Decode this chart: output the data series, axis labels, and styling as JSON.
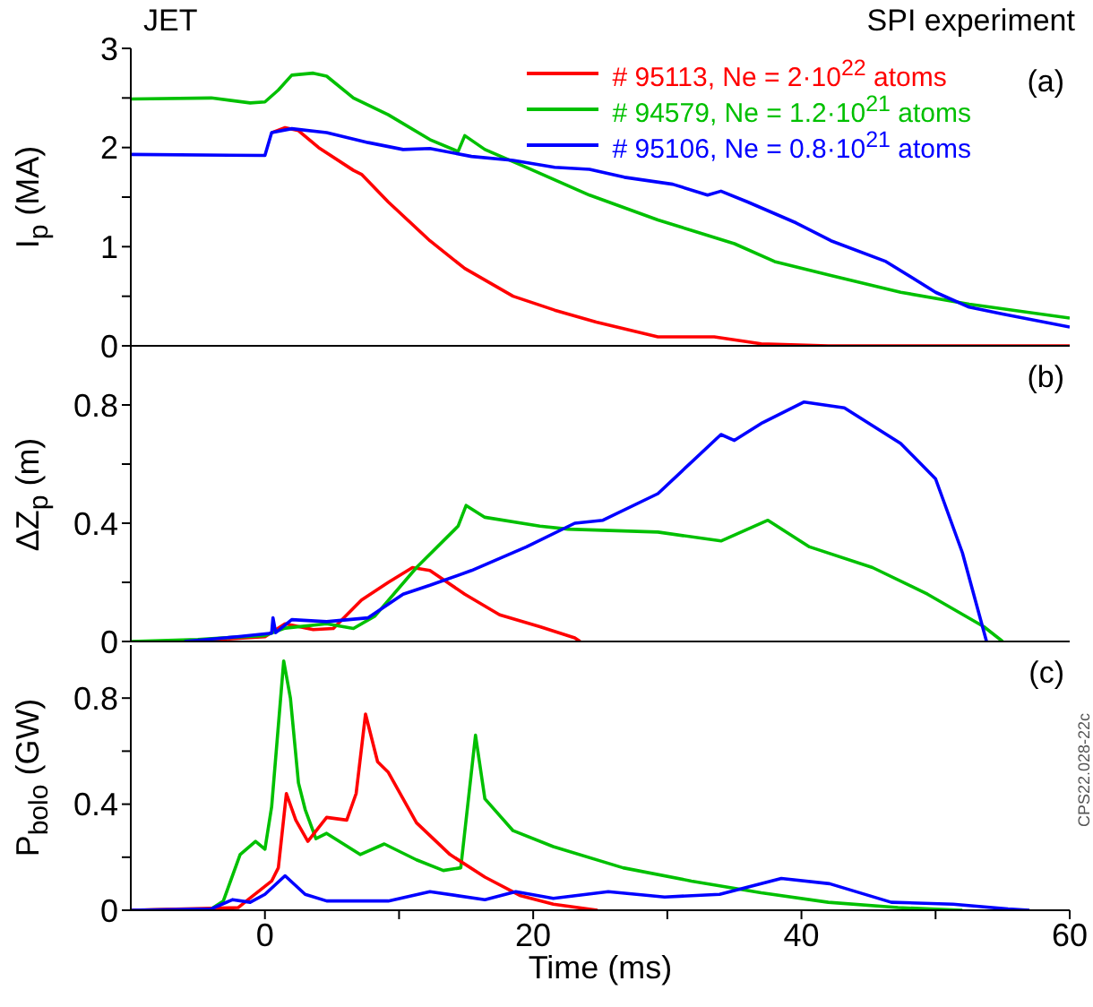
{
  "chart_data": [
    {
      "type": "line",
      "ylabel": "I$_{p}$ (MA)",
      "annotations": [
        "JET",
        "SPI experiment",
        "(a)"
      ],
      "xlim": [
        -10,
        60
      ],
      "xticks": [
        {
          "value": 0,
          "label": null
        },
        {
          "value": 20,
          "label": null
        },
        {
          "value": 40,
          "label": null
        },
        {
          "value": 60,
          "label": null
        }
      ],
      "ylim": [
        0,
        3
      ],
      "yticks": [
        0,
        {
          "value": 0.5,
          "label": null
        },
        1,
        {
          "value": 1.5,
          "label": null
        },
        2,
        {
          "value": 2.5,
          "label": null
        },
        3
      ],
      "tick_labels": "y",
      "legend": "top right",
      "line_style": "solid",
      "series": [
        {
          "name": "# 95113, Ne = 2·10$^{22}$ atoms",
          "color": "#ff0000",
          "x": [
            0.5,
            1.5,
            2.5,
            4,
            6.6,
            7.2,
            9.2,
            12.3,
            14.9,
            18.5,
            21.6,
            24.7,
            29.3,
            33.5,
            37,
            42,
            60
          ],
          "values": [
            2.15,
            2.2,
            2.17,
            2.0,
            1.77,
            1.73,
            1.45,
            1.06,
            0.78,
            0.5,
            0.36,
            0.24,
            0.09,
            0.09,
            0.02,
            0,
            0
          ]
        },
        {
          "name": "# 94579, Ne = 1.2·10$^{21}$ atoms",
          "color": "#00c000",
          "x": [
            -10,
            -4,
            -1.1,
            0,
            1,
            2,
            3.6,
            4.6,
            6.6,
            9.2,
            12.3,
            14.4,
            14.9,
            16.4,
            19.5,
            24.2,
            29.3,
            35,
            38,
            42.2,
            47.4,
            52.5,
            60
          ],
          "values": [
            2.49,
            2.5,
            2.45,
            2.46,
            2.58,
            2.73,
            2.75,
            2.72,
            2.5,
            2.33,
            2.08,
            1.96,
            2.12,
            1.98,
            1.8,
            1.52,
            1.27,
            1.03,
            0.85,
            0.71,
            0.54,
            0.42,
            0.28
          ]
        },
        {
          "name": "# 95106, Ne = 0.8·10$^{21}$ atoms",
          "color": "#0000ff",
          "x": [
            -10,
            0,
            0.5,
            2,
            4.6,
            7.7,
            10.3,
            12.3,
            15.4,
            18.5,
            21.6,
            24.2,
            26.8,
            30.4,
            33,
            34,
            36,
            39.6,
            42.2,
            46.3,
            50,
            52.5,
            55,
            60
          ],
          "values": [
            1.93,
            1.92,
            2.15,
            2.19,
            2.15,
            2.05,
            1.98,
            1.99,
            1.91,
            1.87,
            1.8,
            1.78,
            1.7,
            1.63,
            1.52,
            1.56,
            1.45,
            1.24,
            1.06,
            0.85,
            0.54,
            0.39,
            0.32,
            0.19
          ]
        }
      ]
    },
    {
      "type": "line",
      "ylabel": "ΔZ$_{p}$ (m)",
      "annotations": [
        "(b)"
      ],
      "xlim": [
        -10,
        60
      ],
      "xticks": [
        {
          "value": 0,
          "label": null
        },
        {
          "value": 20,
          "label": null
        },
        {
          "value": 40,
          "label": null
        },
        {
          "value": 60,
          "label": null
        }
      ],
      "ylim": [
        0,
        1
      ],
      "yticks": [
        0,
        {
          "value": 0.2,
          "label": null
        },
        0.4,
        {
          "value": 0.6,
          "label": null
        },
        0.8
      ],
      "tick_labels": "y",
      "line_style": "solid",
      "series": [
        {
          "color": "#ff0000",
          "x": [
            -6,
            0,
            1.5,
            3.6,
            5.1,
            7.2,
            9.2,
            11,
            12.3,
            14.9,
            17.5,
            20.5,
            23.1,
            23.5
          ],
          "values": [
            0,
            0.016,
            0.06,
            0.04,
            0.044,
            0.14,
            0.2,
            0.25,
            0.24,
            0.16,
            0.09,
            0.05,
            0.012,
            0
          ]
        },
        {
          "color": "#00c000",
          "x": [
            -10,
            -5,
            0,
            1.5,
            4.6,
            6.6,
            8.2,
            11.3,
            14.4,
            15,
            16.4,
            20.5,
            22.6,
            29.3,
            34,
            37.5,
            40.6,
            45.3,
            49.4,
            53.6,
            55
          ],
          "values": [
            0,
            0.007,
            0.02,
            0.045,
            0.06,
            0.044,
            0.086,
            0.25,
            0.39,
            0.46,
            0.42,
            0.39,
            0.38,
            0.37,
            0.34,
            0.41,
            0.32,
            0.25,
            0.16,
            0.05,
            0
          ]
        },
        {
          "color": "#0000ff",
          "x": [
            -6,
            -2.1,
            0.5,
            0.6,
            0.8,
            2,
            4.6,
            7.7,
            10.3,
            12.3,
            15.4,
            19.5,
            23.1,
            25.2,
            29.3,
            34,
            35,
            37.1,
            40.2,
            43.2,
            47.4,
            50,
            52,
            53.8
          ],
          "values": [
            0,
            0.016,
            0.028,
            0.08,
            0.03,
            0.074,
            0.067,
            0.08,
            0.16,
            0.19,
            0.24,
            0.32,
            0.4,
            0.41,
            0.5,
            0.7,
            0.68,
            0.74,
            0.81,
            0.79,
            0.67,
            0.55,
            0.3,
            0
          ]
        }
      ]
    },
    {
      "type": "line",
      "xlabel": "Time (ms)",
      "ylabel": "P$_{bolo}$  (GW)",
      "annotations": [
        "(c)",
        "CPS22.028-22c"
      ],
      "xlim": [
        -10,
        60
      ],
      "xticks": [
        0,
        {
          "value": 10,
          "label": null
        },
        20,
        {
          "value": 30,
          "label": null
        },
        40,
        {
          "value": 50,
          "label": null
        },
        60
      ],
      "ylim": [
        0,
        1
      ],
      "yticks": [
        0,
        {
          "value": 0.2,
          "label": null
        },
        0.4,
        {
          "value": 0.6,
          "label": null
        },
        0.8
      ],
      "line_style": "solid",
      "series": [
        {
          "color": "#00c000",
          "x": [
            -10,
            -4,
            -3.1,
            -1.85,
            -0.7,
            0,
            0.5,
            1.4,
            1.9,
            2.5,
            3,
            3.8,
            4.6,
            7.1,
            8.9,
            11.3,
            13.3,
            14.6,
            15.7,
            16.4,
            18.5,
            21.5,
            26.7,
            31.8,
            37,
            42,
            47.2,
            52
          ],
          "values": [
            0,
            0.005,
            0.035,
            0.21,
            0.26,
            0.23,
            0.39,
            0.94,
            0.8,
            0.48,
            0.38,
            0.27,
            0.29,
            0.21,
            0.25,
            0.19,
            0.15,
            0.16,
            0.66,
            0.42,
            0.3,
            0.24,
            0.16,
            0.11,
            0.066,
            0.03,
            0.01,
            0
          ]
        },
        {
          "color": "#ff0000",
          "x": [
            -10,
            -2,
            -1,
            0.5,
            1,
            1.6,
            2.3,
            3.2,
            4.6,
            6.1,
            6.8,
            7.5,
            8.4,
            9.2,
            11.3,
            13.8,
            16.4,
            19,
            21.5,
            24.8
          ],
          "values": [
            0,
            0.01,
            0.05,
            0.11,
            0.16,
            0.44,
            0.34,
            0.26,
            0.35,
            0.34,
            0.44,
            0.74,
            0.56,
            0.52,
            0.33,
            0.21,
            0.125,
            0.056,
            0.023,
            0
          ]
        },
        {
          "color": "#0000ff",
          "x": [
            -10,
            -4,
            -2.4,
            -1.1,
            0,
            1.5,
            3,
            4.6,
            9.2,
            12.3,
            16.4,
            18.7,
            21.5,
            25.6,
            29.8,
            33.9,
            38.5,
            42.1,
            46.7,
            51.3,
            55.4,
            57
          ],
          "values": [
            0,
            0.005,
            0.04,
            0.03,
            0.06,
            0.13,
            0.06,
            0.035,
            0.035,
            0.07,
            0.04,
            0.07,
            0.045,
            0.07,
            0.05,
            0.06,
            0.12,
            0.1,
            0.03,
            0.023,
            0.005,
            0
          ]
        }
      ]
    }
  ]
}
